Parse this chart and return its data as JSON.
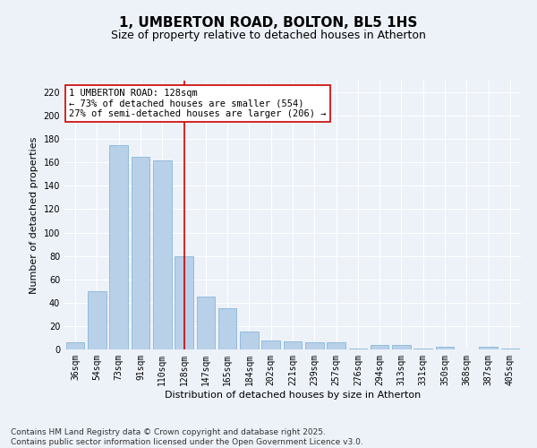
{
  "title": "1, UMBERTON ROAD, BOLTON, BL5 1HS",
  "subtitle": "Size of property relative to detached houses in Atherton",
  "xlabel": "Distribution of detached houses by size in Atherton",
  "ylabel": "Number of detached properties",
  "categories": [
    "36sqm",
    "54sqm",
    "73sqm",
    "91sqm",
    "110sqm",
    "128sqm",
    "147sqm",
    "165sqm",
    "184sqm",
    "202sqm",
    "221sqm",
    "239sqm",
    "257sqm",
    "276sqm",
    "294sqm",
    "313sqm",
    "331sqm",
    "350sqm",
    "368sqm",
    "387sqm",
    "405sqm"
  ],
  "values": [
    6,
    50,
    175,
    165,
    162,
    80,
    45,
    35,
    15,
    8,
    7,
    6,
    6,
    1,
    4,
    4,
    1,
    2,
    0,
    2,
    1
  ],
  "bar_color": "#b8d0e8",
  "bar_edge_color": "#7aafd4",
  "vline_x": 5,
  "vline_color": "#cc0000",
  "annotation_text": "1 UMBERTON ROAD: 128sqm\n← 73% of detached houses are smaller (554)\n27% of semi-detached houses are larger (206) →",
  "annotation_box_color": "#ffffff",
  "annotation_box_edge_color": "#cc0000",
  "ylim": [
    0,
    230
  ],
  "yticks": [
    0,
    20,
    40,
    60,
    80,
    100,
    120,
    140,
    160,
    180,
    200,
    220
  ],
  "background_color": "#edf2f9",
  "grid_color": "#ffffff",
  "footer": "Contains HM Land Registry data © Crown copyright and database right 2025.\nContains public sector information licensed under the Open Government Licence v3.0.",
  "title_fontsize": 11,
  "subtitle_fontsize": 9,
  "axis_label_fontsize": 8,
  "tick_fontsize": 7,
  "annotation_fontsize": 7.5,
  "footer_fontsize": 6.5
}
